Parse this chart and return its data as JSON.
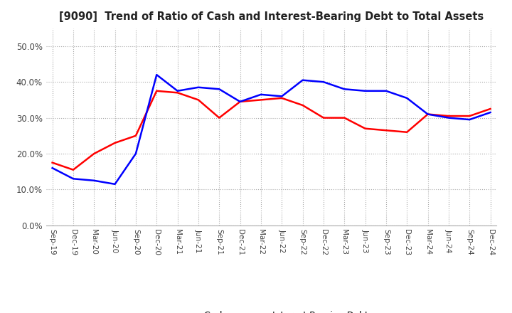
{
  "title": "[9090]  Trend of Ratio of Cash and Interest-Bearing Debt to Total Assets",
  "x_labels": [
    "Sep-19",
    "Dec-19",
    "Mar-20",
    "Jun-20",
    "Sep-20",
    "Dec-20",
    "Mar-21",
    "Jun-21",
    "Sep-21",
    "Dec-21",
    "Mar-22",
    "Jun-22",
    "Sep-22",
    "Dec-22",
    "Mar-23",
    "Jun-23",
    "Sep-23",
    "Dec-23",
    "Mar-24",
    "Jun-24",
    "Sep-24",
    "Dec-24"
  ],
  "cash": [
    0.175,
    0.155,
    0.2,
    0.23,
    0.25,
    0.375,
    0.37,
    0.35,
    0.3,
    0.345,
    0.35,
    0.355,
    0.335,
    0.3,
    0.3,
    0.27,
    0.265,
    0.26,
    0.31,
    0.305,
    0.305,
    0.325
  ],
  "interest_bearing_debt": [
    0.16,
    0.13,
    0.125,
    0.115,
    0.2,
    0.42,
    0.375,
    0.385,
    0.38,
    0.345,
    0.365,
    0.36,
    0.405,
    0.4,
    0.38,
    0.375,
    0.375,
    0.355,
    0.31,
    0.3,
    0.295,
    0.315
  ],
  "ylim": [
    0.0,
    0.55
  ],
  "yticks": [
    0.0,
    0.1,
    0.2,
    0.3,
    0.4,
    0.5
  ],
  "cash_color": "#ff0000",
  "debt_color": "#0000ff",
  "grid_color": "#aaaaaa",
  "background_color": "#ffffff",
  "legend_cash": "Cash",
  "legend_debt": "Interest-Bearing Debt"
}
